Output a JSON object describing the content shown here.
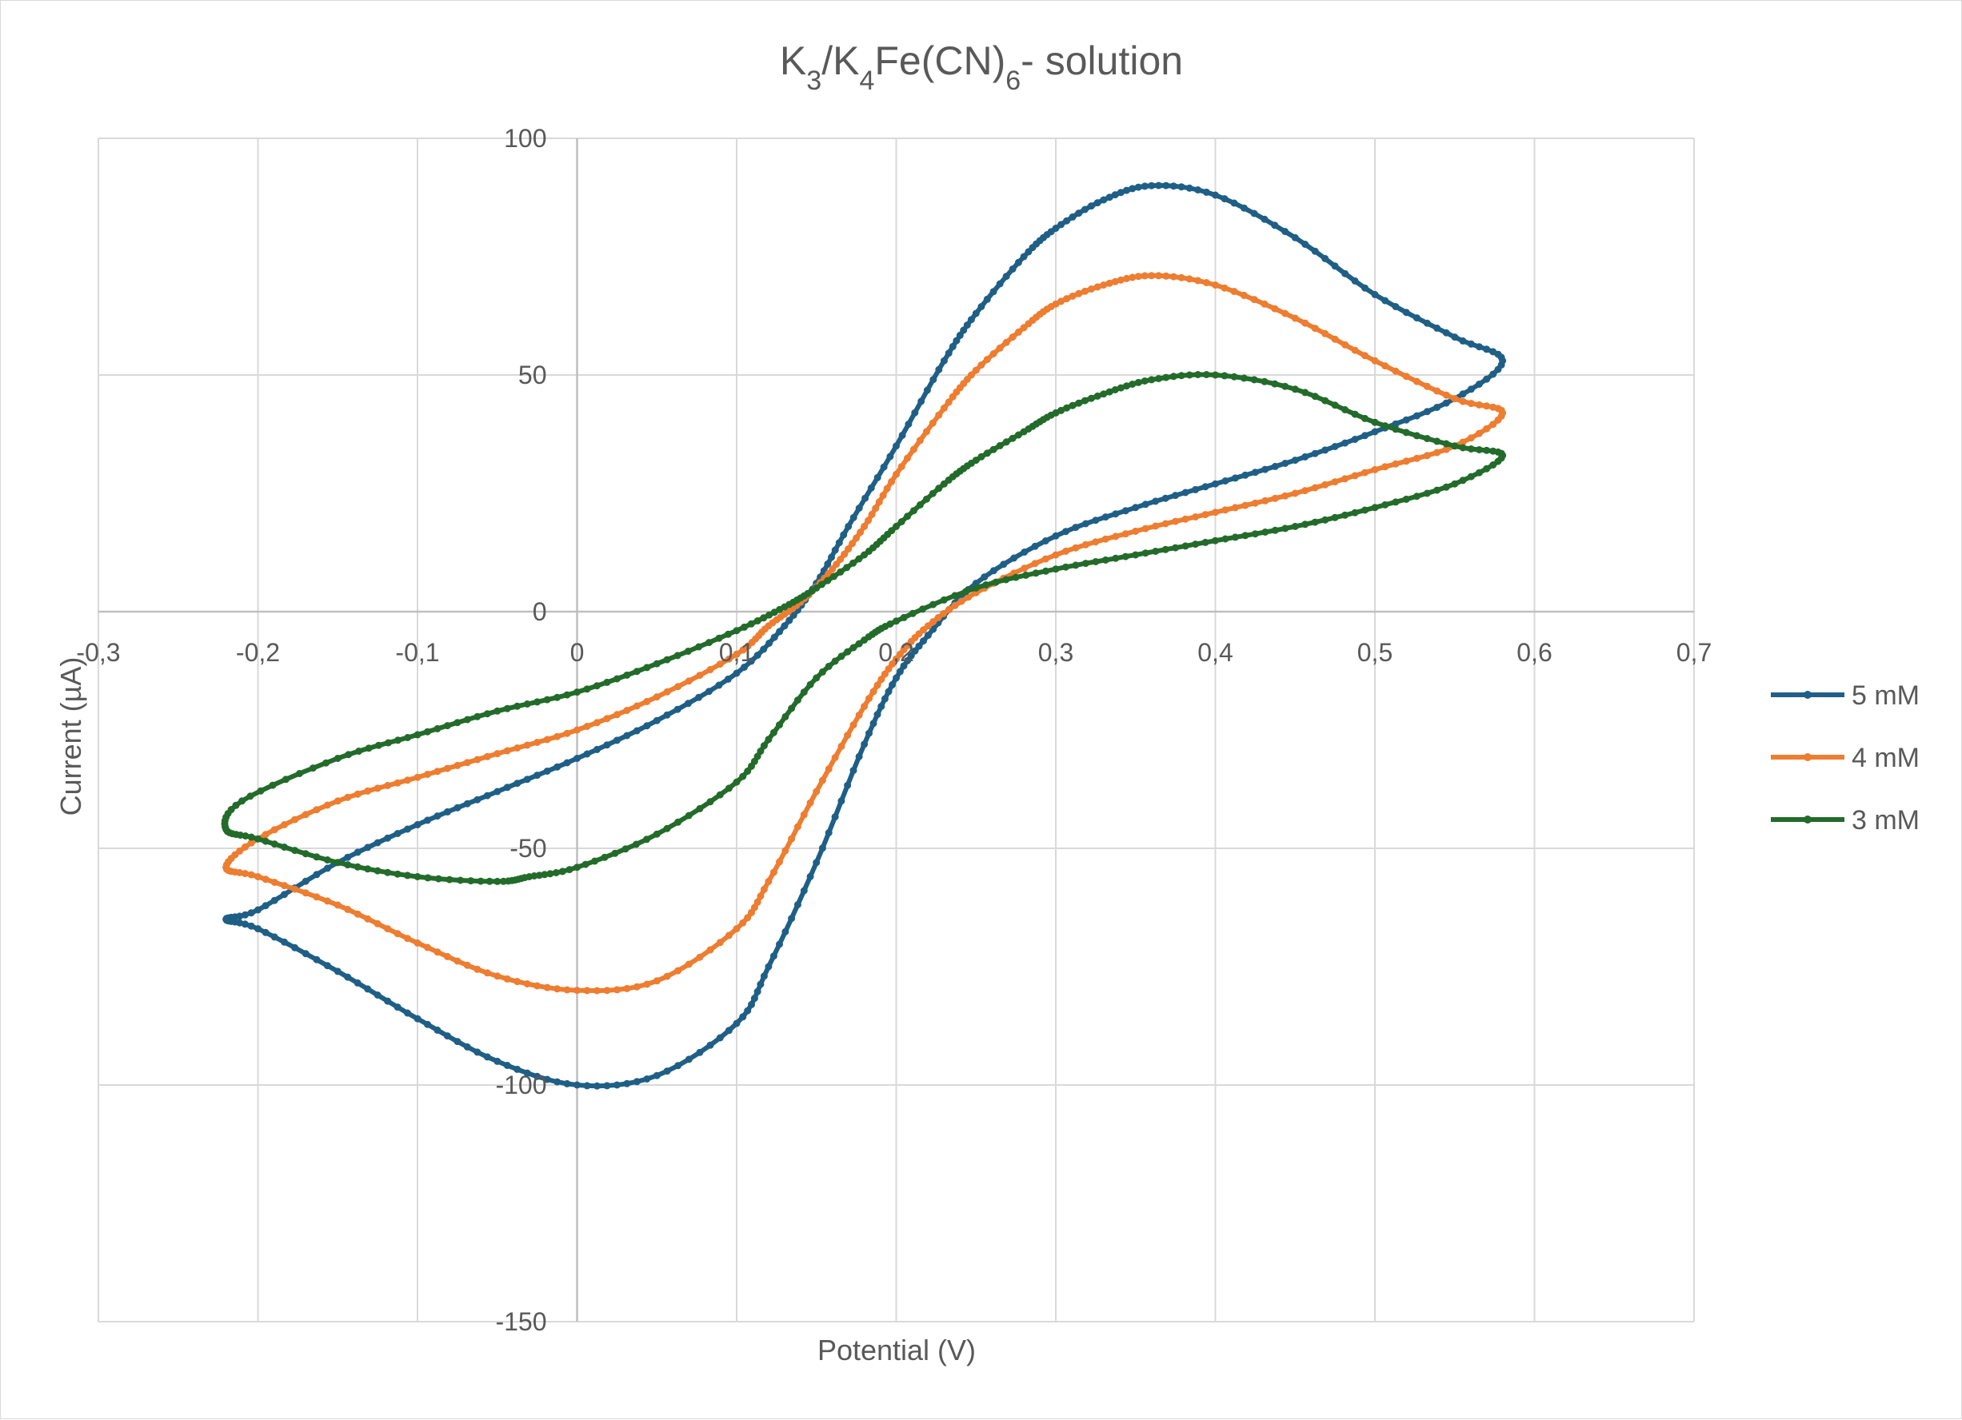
{
  "chart_data": {
    "type": "scatter",
    "title": {
      "parts": [
        {
          "text": "K",
          "sub": false
        },
        {
          "text": "3",
          "sub": true
        },
        {
          "text": "/K",
          "sub": false
        },
        {
          "text": "4",
          "sub": true
        },
        {
          "text": "Fe(CN)",
          "sub": false
        },
        {
          "text": "6",
          "sub": true
        },
        {
          "text": "- solution",
          "sub": false
        }
      ]
    },
    "xlabel": "Potential (V)",
    "ylabel": "Current (µA)",
    "xlim": [
      -0.3,
      0.7
    ],
    "ylim": [
      -150,
      100
    ],
    "x_ticks": [
      {
        "value": -0.3,
        "label": "-0,3"
      },
      {
        "value": -0.2,
        "label": "-0,2"
      },
      {
        "value": -0.1,
        "label": "-0,1"
      },
      {
        "value": 0.0,
        "label": "0"
      },
      {
        "value": 0.1,
        "label": "0,1"
      },
      {
        "value": 0.2,
        "label": "0,2"
      },
      {
        "value": 0.3,
        "label": "0,3"
      },
      {
        "value": 0.4,
        "label": "0,4"
      },
      {
        "value": 0.5,
        "label": "0,5"
      },
      {
        "value": 0.6,
        "label": "0,6"
      },
      {
        "value": 0.7,
        "label": "0,7"
      }
    ],
    "y_ticks": [
      {
        "value": 100,
        "label": "100"
      },
      {
        "value": 50,
        "label": "50"
      },
      {
        "value": 0,
        "label": "0"
      },
      {
        "value": -50,
        "label": "-50"
      },
      {
        "value": -100,
        "label": "-100"
      },
      {
        "value": -150,
        "label": "-150"
      }
    ],
    "grid": true,
    "legend_position": "right",
    "series": [
      {
        "name": "5 mM",
        "color": "#1f5f86",
        "x": [
          -0.2,
          -0.15,
          -0.1,
          -0.05,
          0.0,
          0.05,
          0.1,
          0.13,
          0.15,
          0.17,
          0.2,
          0.23,
          0.25,
          0.28,
          0.3,
          0.33,
          0.36,
          0.4,
          0.45,
          0.5,
          0.55,
          0.58,
          0.55,
          0.5,
          0.45,
          0.4,
          0.35,
          0.3,
          0.25,
          0.22,
          0.2,
          0.18,
          0.15,
          0.12,
          0.1,
          0.05,
          0.0,
          -0.05,
          -0.1,
          -0.15,
          -0.2,
          -0.22
        ],
        "y": [
          -63,
          -53,
          -45,
          -38,
          -31,
          -23,
          -13,
          -3,
          6,
          18,
          35,
          53,
          63,
          75,
          81,
          87,
          90,
          88,
          79,
          67,
          58,
          53,
          45,
          38,
          32,
          27,
          22,
          16,
          6,
          -5,
          -14,
          -28,
          -53,
          -75,
          -87,
          -98,
          -100,
          -95,
          -86,
          -76,
          -67,
          -65
        ]
      },
      {
        "name": "4 mM",
        "color": "#ed7d31",
        "x": [
          -0.2,
          -0.15,
          -0.1,
          -0.05,
          0.0,
          0.05,
          0.1,
          0.12,
          0.14,
          0.16,
          0.18,
          0.2,
          0.23,
          0.25,
          0.28,
          0.3,
          0.33,
          0.36,
          0.4,
          0.45,
          0.5,
          0.55,
          0.58,
          0.55,
          0.5,
          0.45,
          0.4,
          0.35,
          0.3,
          0.25,
          0.22,
          0.2,
          0.18,
          0.15,
          0.12,
          0.1,
          0.05,
          0.0,
          -0.05,
          -0.1,
          -0.15,
          -0.2,
          -0.22
        ],
        "y": [
          -48,
          -40,
          -35,
          -30,
          -25,
          -18,
          -9,
          -3,
          2,
          9,
          18,
          29,
          43,
          51,
          60,
          65,
          69,
          71,
          69,
          62,
          53,
          45,
          42,
          35,
          30,
          25,
          21,
          17,
          12,
          4,
          -3,
          -10,
          -20,
          -38,
          -57,
          -67,
          -78,
          -80,
          -77,
          -70,
          -62,
          -56,
          -54
        ]
      },
      {
        "name": "3 mM",
        "color": "#236b2a",
        "x": [
          -0.21,
          -0.15,
          -0.1,
          -0.05,
          0.0,
          0.05,
          0.1,
          0.13,
          0.15,
          0.18,
          0.2,
          0.23,
          0.25,
          0.28,
          0.3,
          0.33,
          0.36,
          0.4,
          0.45,
          0.5,
          0.55,
          0.58,
          0.55,
          0.5,
          0.45,
          0.4,
          0.35,
          0.3,
          0.25,
          0.2,
          0.18,
          0.15,
          0.12,
          0.1,
          0.05,
          0.0,
          -0.03,
          -0.05,
          -0.1,
          -0.15,
          -0.2,
          -0.22
        ],
        "y": [
          -40,
          -31,
          -26,
          -21,
          -17,
          -11,
          -4,
          1,
          5,
          12,
          18,
          27,
          32,
          38,
          42,
          46,
          49,
          50,
          47,
          40,
          35,
          33,
          27,
          22,
          18,
          15,
          12,
          9,
          5,
          -2,
          -6,
          -14,
          -27,
          -36,
          -47,
          -54,
          -56,
          -57,
          -56,
          -53,
          -48,
          -46
        ]
      }
    ]
  }
}
